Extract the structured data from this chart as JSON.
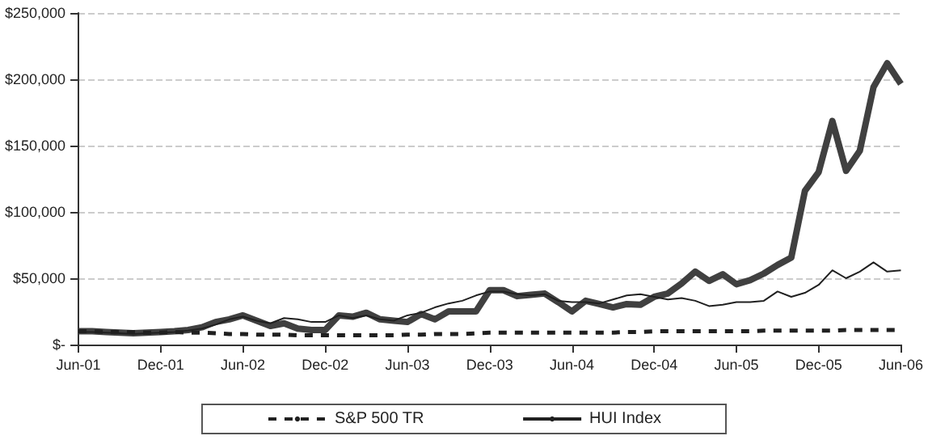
{
  "chart_data": {
    "type": "line",
    "categories": [
      "Jun-01",
      null,
      null,
      null,
      null,
      null,
      "Dec-01",
      null,
      null,
      null,
      null,
      null,
      "Jun-02",
      null,
      null,
      null,
      null,
      null,
      "Dec-02",
      null,
      null,
      null,
      null,
      null,
      "Jun-03",
      null,
      null,
      null,
      null,
      null,
      "Dec-03",
      null,
      null,
      null,
      null,
      null,
      "Jun-04",
      null,
      null,
      null,
      null,
      null,
      "Dec-04",
      null,
      null,
      null,
      null,
      null,
      "Jun-05",
      null,
      null,
      null,
      null,
      null,
      "Dec-05",
      null,
      null,
      null,
      null,
      null,
      "Jun-06"
    ],
    "series": [
      {
        "color": "#404040",
        "values": [
          10000,
          10000,
          9500,
          9000,
          8500,
          9000,
          9500,
          10000,
          11000,
          13000,
          17000,
          19000,
          22000,
          18000,
          14000,
          16000,
          12000,
          11000,
          11000,
          22000,
          21000,
          24000,
          19000,
          18000,
          17000,
          23000,
          19000,
          25000,
          25000,
          25000,
          41000,
          41000,
          36500,
          37500,
          38500,
          32000,
          25000,
          33000,
          30500,
          28000,
          30500,
          30000,
          36000,
          38500,
          46000,
          55000,
          48000,
          53000,
          45500,
          48500,
          53500,
          60000,
          65500,
          116000,
          130000,
          168500,
          131000,
          146000,
          194000,
          212000,
          196500
        ]
      },
      {
        "name": "S&P 500 TR",
        "color": "#202020",
        "line_style": "dashed",
        "values": [
          10000,
          10000,
          9500,
          9500,
          9500,
          9000,
          9000,
          9500,
          9000,
          9000,
          8500,
          8000,
          8000,
          7500,
          7500,
          7500,
          7000,
          7000,
          7000,
          7000,
          7000,
          7000,
          7000,
          7000,
          7500,
          7500,
          8000,
          8000,
          8000,
          8500,
          9000,
          9000,
          9000,
          9000,
          9000,
          9000,
          9000,
          9000,
          9000,
          9000,
          9500,
          9500,
          10000,
          10000,
          10000,
          10000,
          10000,
          10000,
          10000,
          10000,
          10500,
          10500,
          10500,
          10500,
          10500,
          10500,
          11000,
          11000,
          11000,
          11000,
          11000
        ]
      },
      {
        "name": "HUI Index",
        "color": "#202020",
        "values": [
          9500,
          9500,
          9000,
          8500,
          8000,
          8500,
          9000,
          9500,
          10500,
          12000,
          15000,
          19000,
          21000,
          18000,
          16000,
          20000,
          19000,
          17000,
          17000,
          22000,
          20000,
          22000,
          19000,
          18000,
          22000,
          24000,
          28000,
          31000,
          33000,
          37000,
          40000,
          40000,
          38000,
          37000,
          38000,
          33000,
          32000,
          32000,
          31000,
          34000,
          37000,
          38000,
          36000,
          34000,
          35000,
          33000,
          29000,
          30000,
          32000,
          32000,
          33000,
          40000,
          36000,
          39000,
          45000,
          56000,
          50000,
          55000,
          62000,
          55000,
          56000
        ]
      }
    ],
    "ylim": [
      0,
      250000
    ],
    "yticks": [
      {
        "value": 0,
        "label": "$-"
      },
      {
        "value": 50000,
        "label": "$50,000"
      },
      {
        "value": 100000,
        "label": "$100,000"
      },
      {
        "value": 150000,
        "label": "$150,000"
      },
      {
        "value": 200000,
        "label": "$200,000"
      },
      {
        "value": 250000,
        "label": "$250,000"
      }
    ],
    "grid": "y",
    "legend": "bottom",
    "marker": "none"
  }
}
